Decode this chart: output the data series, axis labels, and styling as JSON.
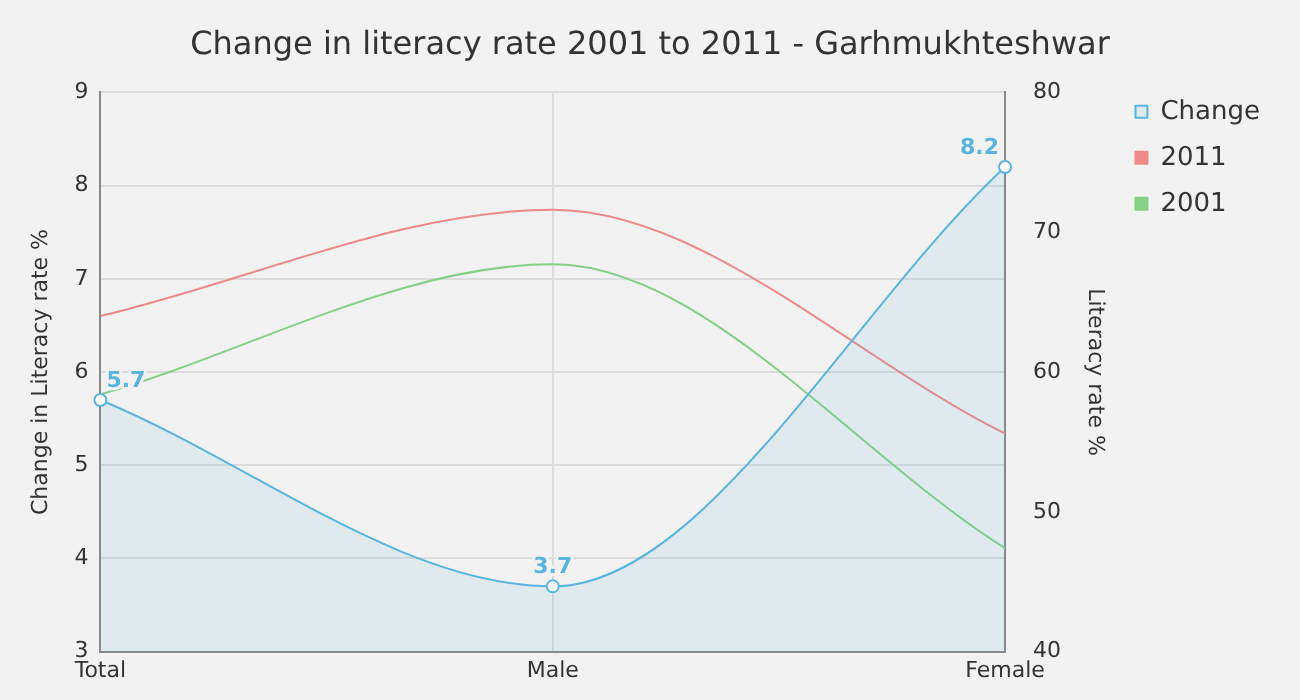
{
  "chart_data": {
    "type": "line",
    "title": "Change in literacy rate 2001 to 2011 - Garhmukhteshwar",
    "ylabel": "Change in Literacy rate %",
    "y2label": "Literacy rate %",
    "categories": [
      "Total",
      "Male",
      "Female"
    ],
    "series": [
      {
        "name": "Change",
        "type": "area",
        "color": "#5ab4e0",
        "values": [
          5.7,
          3.7,
          8.2
        ],
        "marker": "circle",
        "value_labels": [
          "5.7",
          "3.7",
          "8.2"
        ]
      },
      {
        "name": "2011",
        "color": "#f08a8a",
        "values": [
          64,
          71.6,
          55.6
        ],
        "axis": "y2",
        "marker": "none"
      },
      {
        "name": "2001",
        "color": "#86cf86",
        "values": [
          58.4,
          67.7,
          47.4
        ],
        "axis": "y2",
        "marker": "none"
      }
    ],
    "ylim": [
      3,
      9
    ],
    "yticks": [
      3,
      4,
      5,
      6,
      7,
      8,
      9
    ],
    "y2lim": [
      40,
      80
    ],
    "y2ticks": [
      40,
      50,
      60,
      70,
      80
    ],
    "grid": true,
    "legend": "top right",
    "line_style": "solid"
  }
}
